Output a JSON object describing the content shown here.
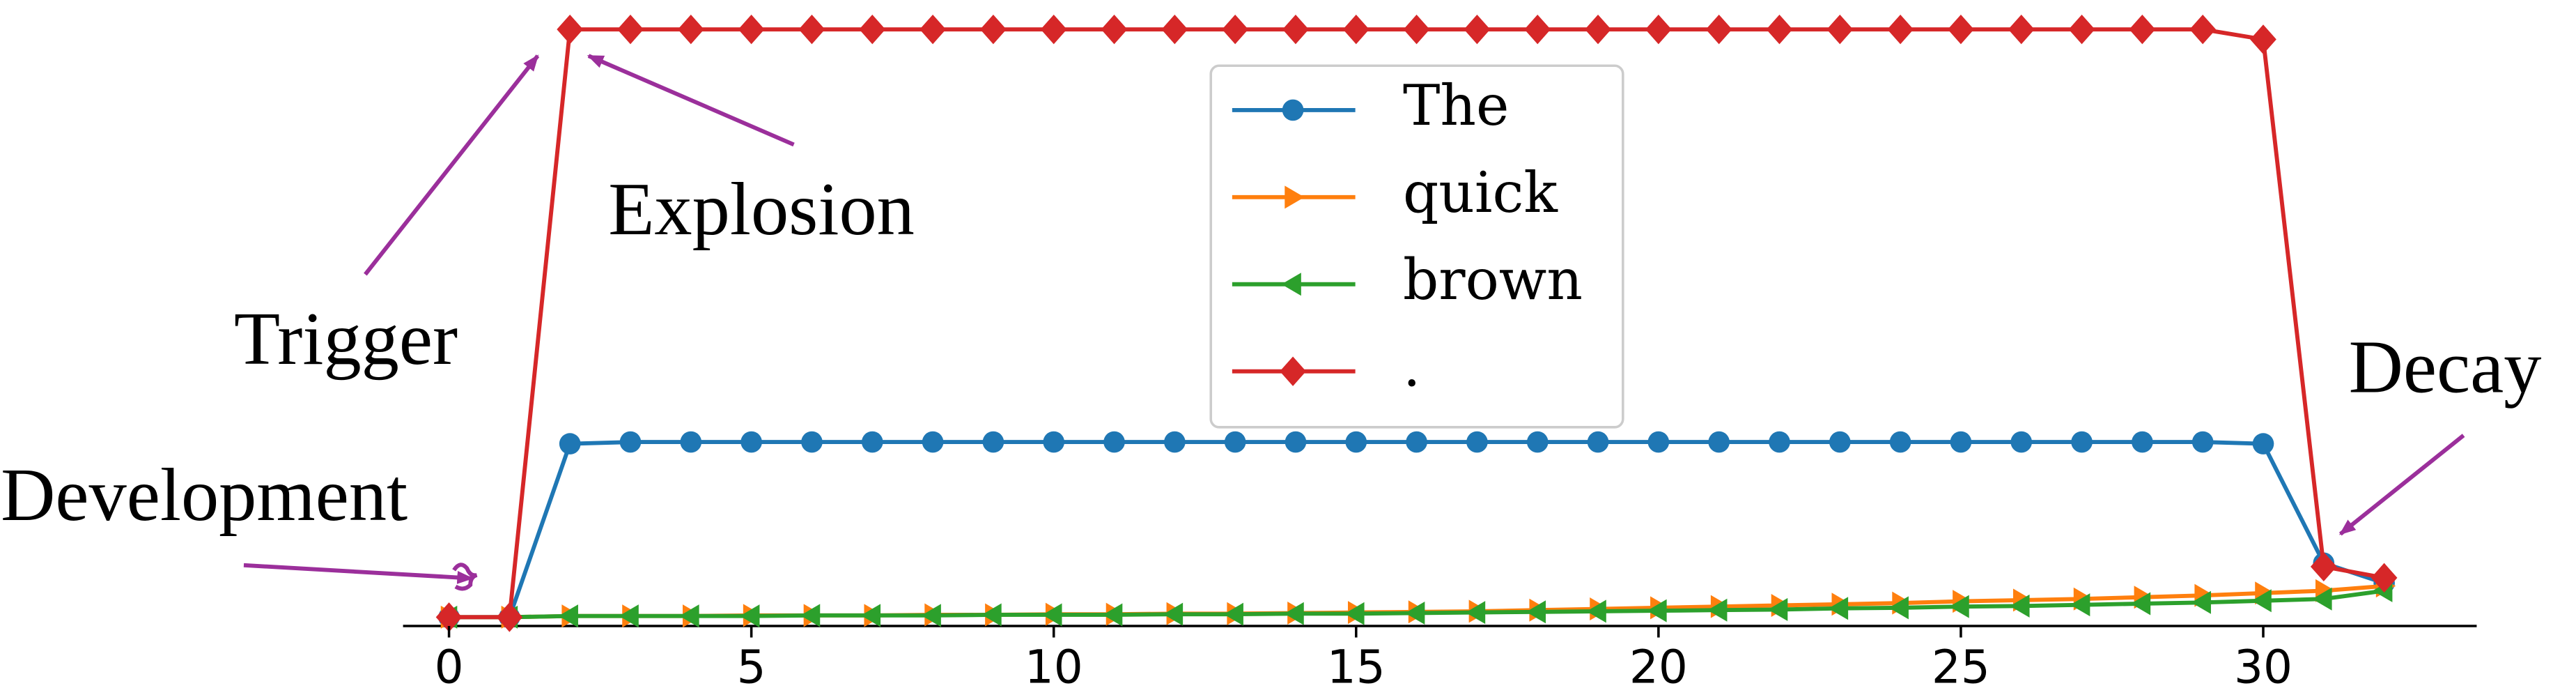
{
  "chart_data": {
    "type": "line",
    "x": [
      0,
      1,
      2,
      3,
      4,
      5,
      6,
      7,
      8,
      9,
      10,
      11,
      12,
      13,
      14,
      15,
      16,
      17,
      18,
      19,
      20,
      21,
      22,
      23,
      24,
      25,
      26,
      27,
      28,
      29,
      30,
      31,
      32
    ],
    "series": [
      {
        "name": "The",
        "color": "#1f77b4",
        "marker": "o",
        "values": [
          0,
          0,
          0.295,
          0.298,
          0.298,
          0.298,
          0.298,
          0.298,
          0.298,
          0.298,
          0.298,
          0.298,
          0.298,
          0.298,
          0.298,
          0.298,
          0.298,
          0.298,
          0.298,
          0.298,
          0.298,
          0.298,
          0.298,
          0.298,
          0.298,
          0.298,
          0.298,
          0.298,
          0.298,
          0.298,
          0.295,
          0.092,
          0.058
        ]
      },
      {
        "name": "quick",
        "color": "#ff7f0e",
        "marker": ">",
        "values": [
          0,
          0,
          0.002,
          0.002,
          0.002,
          0.003,
          0.003,
          0.003,
          0.004,
          0.004,
          0.005,
          0.005,
          0.006,
          0.006,
          0.007,
          0.008,
          0.009,
          0.01,
          0.012,
          0.014,
          0.016,
          0.018,
          0.02,
          0.022,
          0.024,
          0.027,
          0.029,
          0.031,
          0.034,
          0.037,
          0.041,
          0.045,
          0.053
        ]
      },
      {
        "name": "brown",
        "color": "#2ca02c",
        "marker": "<",
        "values": [
          0,
          0,
          0.002,
          0.002,
          0.002,
          0.002,
          0.003,
          0.003,
          0.003,
          0.004,
          0.004,
          0.004,
          0.005,
          0.005,
          0.006,
          0.006,
          0.007,
          0.008,
          0.009,
          0.01,
          0.011,
          0.012,
          0.013,
          0.015,
          0.016,
          0.018,
          0.019,
          0.021,
          0.023,
          0.025,
          0.028,
          0.031,
          0.045
        ]
      },
      {
        "name": ".",
        "color": "#d62728",
        "marker": "D",
        "values": [
          0,
          0,
          1,
          1,
          1,
          1,
          1,
          1,
          1,
          1,
          1,
          1,
          1,
          1,
          1,
          1,
          1,
          1,
          1,
          1,
          1,
          1,
          1,
          1,
          1,
          1,
          1,
          1,
          1,
          1,
          0.983,
          0.086,
          0.067
        ]
      }
    ],
    "xlim": [
      -0.76,
      33.53
    ],
    "xticks": [
      0,
      5,
      10,
      15,
      20,
      25,
      30
    ],
    "ylim": [
      -0.015,
      1.05
    ],
    "legend": "upper center",
    "annotations": [
      "Explosion",
      "Trigger",
      "Development",
      "Decay"
    ]
  }
}
